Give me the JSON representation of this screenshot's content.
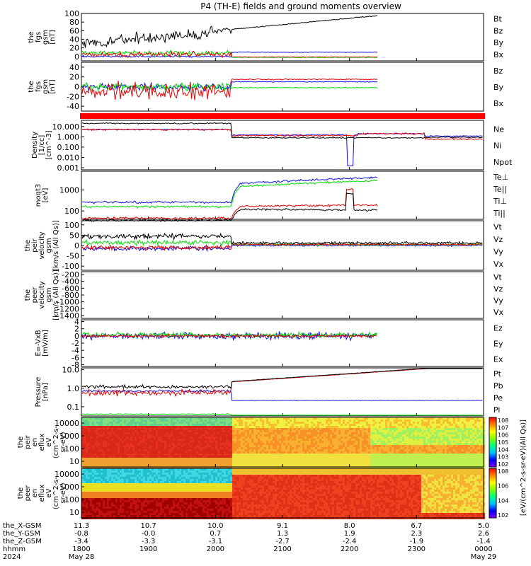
{
  "title": "P4 (TH-E) fields and ground moments overview",
  "colors": {
    "black": "#000000",
    "red": "#e00000",
    "green": "#00e000",
    "blue": "#1010e0"
  },
  "chart_data": [
    {
      "type": "line",
      "name": "fgs_gsm",
      "ylabel": [
        "the",
        "fgs",
        "gsm",
        "[nT]"
      ],
      "ylim": [
        -10,
        100
      ],
      "yticks": [
        "100",
        "80",
        "60",
        "40",
        "20",
        "0"
      ],
      "series": [
        {
          "name": "Bt",
          "color": "black"
        },
        {
          "name": "Bz",
          "color": "red"
        },
        {
          "name": "By",
          "color": "green"
        },
        {
          "name": "Bx",
          "color": "blue"
        }
      ]
    },
    {
      "type": "line",
      "name": "fgs_gsm_components",
      "ylabel": [
        "the",
        "fgs",
        "gsm",
        "[nT]"
      ],
      "ylim": [
        -50,
        50
      ],
      "yticks": [
        "40",
        "20",
        "0",
        "-20",
        "-40"
      ],
      "series": [
        {
          "name": "Bz",
          "color": "red"
        },
        {
          "name": "By",
          "color": "green"
        },
        {
          "name": "Bx",
          "color": "blue"
        }
      ]
    },
    {
      "type": "bar",
      "name": "flag_bar"
    },
    {
      "type": "line",
      "name": "density",
      "ylabel": [
        "Density",
        "[1/cc]",
        "[cm^-3]"
      ],
      "log": true,
      "yticks": [
        "10.000",
        "1.000",
        "0.100",
        "0.010",
        "0.001"
      ],
      "series": [
        {
          "name": "Ne",
          "color": "red"
        },
        {
          "name": "Ni",
          "color": "black"
        },
        {
          "name": "Npot",
          "color": "blue"
        }
      ]
    },
    {
      "type": "line",
      "name": "temperature",
      "ylabel": [
        "moqt3",
        "[eV]"
      ],
      "log": true,
      "yticks": [
        "1000",
        "100"
      ],
      "series": [
        {
          "name": "Te⊥",
          "color": "red"
        },
        {
          "name": "Te||",
          "color": "black"
        },
        {
          "name": "Ti⊥",
          "color": "blue"
        },
        {
          "name": "Ti||",
          "color": "green"
        }
      ]
    },
    {
      "type": "line",
      "name": "peir_velocity",
      "ylabel": [
        "the",
        "peir",
        "velocity",
        "gsm",
        "[km/s (All Qs)]"
      ],
      "ylim": [
        -120,
        120
      ],
      "yticks": [
        "100",
        "50",
        "0",
        "-50",
        "-100"
      ],
      "series": [
        {
          "name": "Vt",
          "color": "black"
        },
        {
          "name": "Vz",
          "color": "red"
        },
        {
          "name": "Vy",
          "color": "green"
        },
        {
          "name": "Vx",
          "color": "blue"
        }
      ]
    },
    {
      "type": "line",
      "name": "peer_velocity",
      "ylabel": [
        "the",
        "peer",
        "velocity",
        "gsm",
        "[km/s (All Qs)]"
      ],
      "yticks": [
        "-200",
        "-400",
        "-600",
        "-800",
        "-1000",
        "-1200",
        "-1400"
      ],
      "series": [
        {
          "name": "Vt",
          "color": "black"
        },
        {
          "name": "Vz",
          "color": "red"
        },
        {
          "name": "Vy",
          "color": "green"
        },
        {
          "name": "Vx",
          "color": "blue"
        }
      ]
    },
    {
      "type": "line",
      "name": "efield",
      "ylabel": [
        "E=-VxB",
        "[mV/m]"
      ],
      "ylim": [
        -8,
        4
      ],
      "yticks": [
        "4",
        "2",
        "0",
        "-2",
        "-4",
        "-6",
        "-8"
      ],
      "series": [
        {
          "name": "Ez",
          "color": "red"
        },
        {
          "name": "Ey",
          "color": "green"
        },
        {
          "name": "Ex",
          "color": "blue"
        }
      ]
    },
    {
      "type": "line",
      "name": "pressure",
      "ylabel": [
        "Pressure",
        "[nPa]"
      ],
      "log": true,
      "yticks": [
        "10.0",
        "1.0",
        "0.1"
      ],
      "series": [
        {
          "name": "Pt",
          "color": "black"
        },
        {
          "name": "Pb",
          "color": "red"
        },
        {
          "name": "Pe",
          "color": "green"
        },
        {
          "name": "Pi",
          "color": "blue"
        }
      ]
    },
    {
      "type": "heatmap",
      "name": "peir_eflux",
      "ylabel": [
        "the",
        "peir",
        "en",
        "eflux",
        "eV",
        "(cm^2-s-",
        "sr-eV)"
      ],
      "yticks": [
        "10000",
        "1000",
        "100",
        "10"
      ]
    },
    {
      "type": "heatmap",
      "name": "peer_eflux",
      "ylabel": [
        "the",
        "peer",
        "en",
        "eflux",
        "eV",
        "(cm^2-s-",
        "sr-eV)"
      ],
      "yticks": [
        "10000",
        "1000",
        "100",
        "10"
      ]
    }
  ],
  "colorbar": {
    "label": "[eV/(cm^2-s-sr-eV)(All Qs)]",
    "top_ticks": [
      "10^8",
      "10^7",
      "10^6",
      "10^5",
      "10^4",
      "10^3",
      "10^2"
    ],
    "bottom_ticks": [
      "10^8",
      "10^6",
      "10^4",
      "10^2"
    ]
  },
  "xaxis": {
    "row_labels": [
      "the_X-GSM",
      "the_Y-GSM",
      "the_Z-GSM",
      "hhmm",
      "2024"
    ],
    "columns": [
      {
        "vals": [
          "11.3",
          "-0.8",
          "-3.4",
          "1800"
        ],
        "date": "May 28"
      },
      {
        "vals": [
          "10.7",
          "-0.0",
          "-3.3",
          "1900"
        ],
        "date": ""
      },
      {
        "vals": [
          "10.0",
          "0.7",
          "-3.1",
          "2000"
        ],
        "date": ""
      },
      {
        "vals": [
          "9.1",
          "1.3",
          "-2.7",
          "2100"
        ],
        "date": ""
      },
      {
        "vals": [
          "8.0",
          "1.9",
          "-2.4",
          "2200"
        ],
        "date": ""
      },
      {
        "vals": [
          "6.7",
          "2.3",
          "-1.9",
          "2300"
        ],
        "date": ""
      },
      {
        "vals": [
          "5.0",
          "2.6",
          "-1.4",
          "0000"
        ],
        "date": "May 29"
      }
    ]
  }
}
